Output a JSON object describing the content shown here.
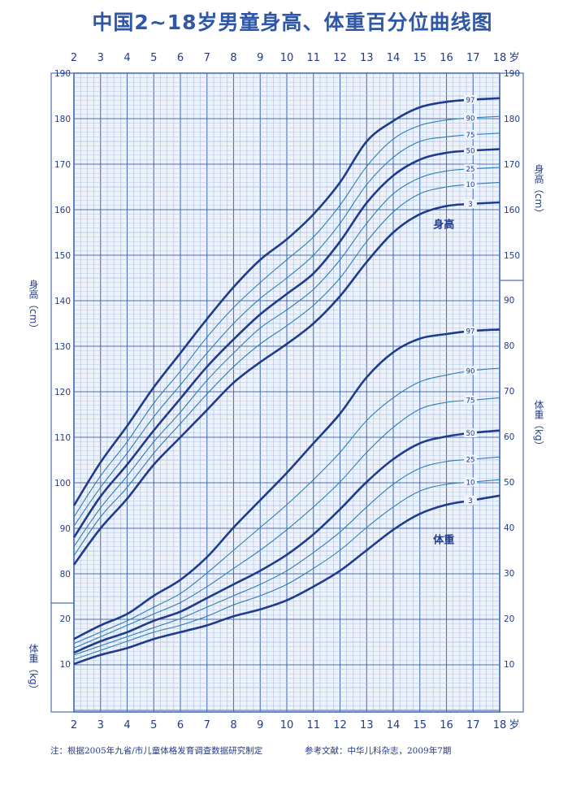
{
  "title": "中国2~18岁男童身高、体重百分位曲线图",
  "footer": {
    "note": "注：根据2005年九省/市儿童体格发育调查数据研究制定",
    "reference": "参考文献：中华儿科杂志，2009年7期"
  },
  "colors": {
    "grid_major": "#4a70b8",
    "grid_minor": "#a9bde4",
    "curve_main": "#1f3b8c",
    "curve_secondary": "#2d7fb5",
    "text": "#1f3b8c"
  },
  "chart_data": {
    "type": "line",
    "x_axis": {
      "range": [
        2,
        18
      ],
      "ticks": [
        "2",
        "3",
        "4",
        "5",
        "6",
        "7",
        "8",
        "9",
        "10",
        "11",
        "12",
        "13",
        "14",
        "15",
        "16",
        "17",
        "18"
      ],
      "unit": "岁"
    },
    "height_axis": {
      "label": "身高（cm）",
      "range": [
        80,
        190
      ],
      "ticks_left": [
        "190",
        "180",
        "170",
        "160",
        "150",
        "140",
        "130",
        "120",
        "110",
        "100",
        "90",
        "80"
      ],
      "ticks_right": [
        "190",
        "180",
        "170",
        "160",
        "150"
      ]
    },
    "weight_axis": {
      "label": "体重（kg）",
      "range": [
        0,
        90
      ],
      "ticks_left": [
        "20",
        "10"
      ],
      "ticks_right": [
        "90",
        "80",
        "70",
        "60",
        "50",
        "40",
        "30",
        "20",
        "10"
      ]
    },
    "height": {
      "label": "身高",
      "x": [
        2,
        3,
        4,
        5,
        6,
        7,
        8,
        9,
        10,
        11,
        12,
        13,
        14,
        15,
        16,
        17,
        18
      ],
      "series": [
        {
          "name": "97",
          "values": [
            95.0,
            104.5,
            112.5,
            121.0,
            128.5,
            136.0,
            143.0,
            149.0,
            153.5,
            159.0,
            166.0,
            175.0,
            179.5,
            182.5,
            183.7,
            184.2,
            184.5
          ]
        },
        {
          "name": "90",
          "values": [
            92.5,
            101.5,
            109.0,
            117.5,
            124.5,
            132.0,
            138.5,
            144.0,
            149.0,
            154.0,
            161.0,
            169.5,
            175.5,
            178.5,
            179.7,
            180.2,
            180.5
          ]
        },
        {
          "name": "75",
          "values": [
            90.5,
            99.0,
            106.5,
            114.5,
            121.5,
            128.5,
            135.0,
            140.5,
            145.0,
            150.0,
            157.0,
            165.5,
            171.5,
            175.0,
            176.0,
            176.5,
            176.8
          ]
        },
        {
          "name": "50",
          "values": [
            88.0,
            97.0,
            104.0,
            111.5,
            118.5,
            125.5,
            131.5,
            137.0,
            141.5,
            146.0,
            153.0,
            161.5,
            167.5,
            171.0,
            172.5,
            173.0,
            173.3
          ]
        },
        {
          "name": "25",
          "values": [
            86.0,
            94.5,
            101.5,
            109.0,
            115.5,
            122.5,
            128.5,
            134.0,
            138.0,
            142.5,
            149.0,
            157.0,
            163.5,
            167.0,
            168.5,
            169.0,
            169.3
          ]
        },
        {
          "name": "10",
          "values": [
            84.0,
            92.5,
            99.0,
            106.5,
            113.0,
            119.5,
            125.5,
            130.5,
            134.5,
            139.0,
            145.0,
            153.0,
            159.5,
            163.5,
            165.0,
            165.6,
            166.0
          ]
        },
        {
          "name": "3",
          "values": [
            82.0,
            90.0,
            96.5,
            104.0,
            110.0,
            116.0,
            122.0,
            126.5,
            130.5,
            135.0,
            141.0,
            148.5,
            155.0,
            159.0,
            160.8,
            161.3,
            161.6
          ]
        }
      ]
    },
    "weight": {
      "label": "体重",
      "x": [
        2,
        3,
        4,
        5,
        6,
        7,
        8,
        9,
        10,
        11,
        12,
        13,
        14,
        15,
        16,
        17,
        18
      ],
      "series": [
        {
          "name": "97",
          "values": [
            15.5,
            18.5,
            21.0,
            25.0,
            28.5,
            33.5,
            40.0,
            46.0,
            52.0,
            58.5,
            65.0,
            73.0,
            78.5,
            81.5,
            82.5,
            83.2,
            83.5
          ]
        },
        {
          "name": "90",
          "values": [
            14.5,
            17.0,
            19.5,
            22.5,
            25.5,
            30.0,
            35.0,
            40.0,
            45.0,
            50.5,
            56.5,
            63.5,
            68.5,
            72.0,
            73.5,
            74.5,
            75.0
          ]
        },
        {
          "name": "75",
          "values": [
            13.5,
            16.0,
            18.5,
            21.0,
            23.5,
            27.0,
            31.0,
            35.0,
            39.5,
            44.5,
            50.0,
            56.5,
            62.0,
            66.0,
            67.5,
            68.0,
            68.5
          ]
        },
        {
          "name": "50",
          "values": [
            12.5,
            15.0,
            17.0,
            19.5,
            21.5,
            24.5,
            27.5,
            30.5,
            34.0,
            38.5,
            44.0,
            50.0,
            55.0,
            58.5,
            60.0,
            60.8,
            61.3
          ]
        },
        {
          "name": "25",
          "values": [
            12.0,
            14.0,
            16.0,
            18.0,
            20.0,
            22.5,
            25.0,
            27.5,
            30.5,
            34.5,
            39.0,
            44.5,
            49.5,
            53.0,
            54.5,
            55.0,
            55.5
          ]
        },
        {
          "name": "10",
          "values": [
            11.0,
            13.0,
            15.0,
            17.0,
            18.5,
            20.5,
            23.0,
            25.0,
            27.5,
            31.0,
            35.0,
            40.0,
            44.5,
            48.0,
            49.5,
            50.0,
            50.5
          ]
        },
        {
          "name": "3",
          "values": [
            10.0,
            12.0,
            13.5,
            15.5,
            17.0,
            18.5,
            20.5,
            22.0,
            24.0,
            27.0,
            30.5,
            35.0,
            39.5,
            43.0,
            45.0,
            46.0,
            47.0
          ]
        }
      ]
    }
  }
}
